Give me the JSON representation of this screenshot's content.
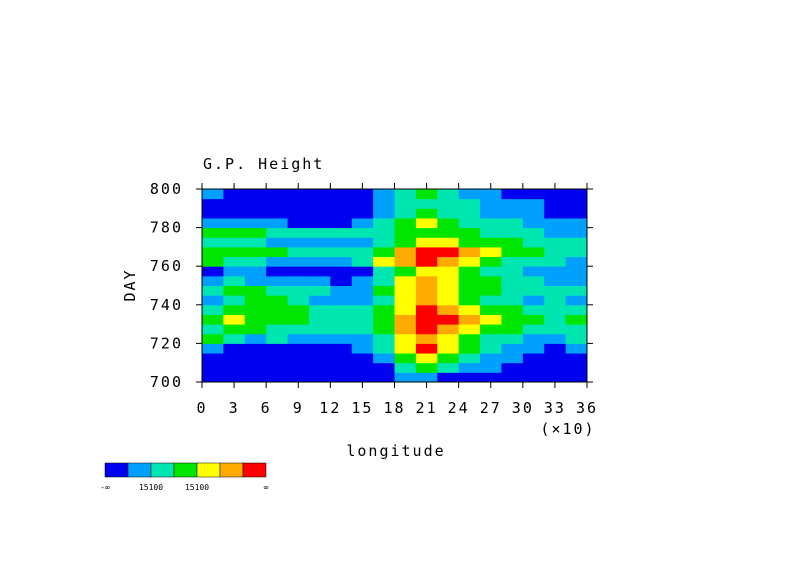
{
  "chart_data": {
    "type": "heatmap",
    "title": "G.P. Height",
    "xlabel": "longitude",
    "ylabel": "DAY",
    "xscale_note": "(×10)",
    "x": [
      0,
      2,
      4,
      6,
      8,
      10,
      12,
      14,
      16,
      18,
      20,
      22,
      24,
      26,
      28,
      30,
      32,
      34
    ],
    "y": [
      700,
      705,
      710,
      715,
      720,
      725,
      730,
      735,
      740,
      745,
      750,
      755,
      760,
      765,
      770,
      775,
      780,
      785,
      790,
      795
    ],
    "z": [
      [
        0,
        0,
        0,
        0,
        0,
        0,
        0,
        0,
        0,
        1,
        1,
        0,
        0,
        0,
        0,
        0,
        0,
        0
      ],
      [
        0,
        0,
        0,
        0,
        0,
        0,
        0,
        0,
        0,
        2,
        3,
        2,
        1,
        1,
        0,
        0,
        0,
        0
      ],
      [
        0,
        0,
        0,
        0,
        0,
        0,
        0,
        0,
        1,
        3,
        4,
        3,
        2,
        1,
        1,
        0,
        0,
        0
      ],
      [
        1,
        0,
        0,
        0,
        0,
        0,
        0,
        1,
        2,
        4,
        6,
        4,
        3,
        2,
        1,
        1,
        0,
        1
      ],
      [
        3,
        2,
        1,
        2,
        1,
        1,
        1,
        1,
        2,
        4,
        5,
        4,
        3,
        2,
        2,
        1,
        1,
        2
      ],
      [
        2,
        3,
        3,
        2,
        2,
        2,
        2,
        2,
        3,
        5,
        6,
        5,
        4,
        3,
        3,
        2,
        2,
        2
      ],
      [
        3,
        4,
        3,
        3,
        3,
        2,
        2,
        2,
        3,
        5,
        6,
        6,
        5,
        4,
        3,
        3,
        2,
        3
      ],
      [
        2,
        3,
        3,
        3,
        3,
        2,
        2,
        2,
        3,
        4,
        6,
        5,
        4,
        3,
        3,
        2,
        2,
        2
      ],
      [
        1,
        2,
        3,
        3,
        2,
        1,
        1,
        1,
        2,
        4,
        5,
        4,
        3,
        2,
        2,
        1,
        2,
        1
      ],
      [
        2,
        3,
        3,
        2,
        2,
        2,
        1,
        1,
        3,
        4,
        5,
        4,
        3,
        3,
        2,
        2,
        2,
        2
      ],
      [
        1,
        2,
        1,
        1,
        1,
        1,
        0,
        1,
        2,
        4,
        5,
        4,
        3,
        3,
        2,
        2,
        1,
        1
      ],
      [
        0,
        1,
        1,
        0,
        0,
        0,
        0,
        0,
        2,
        3,
        4,
        4,
        3,
        2,
        2,
        1,
        1,
        1
      ],
      [
        3,
        2,
        2,
        1,
        1,
        1,
        1,
        2,
        4,
        5,
        6,
        5,
        4,
        3,
        2,
        2,
        2,
        1
      ],
      [
        3,
        3,
        3,
        3,
        2,
        2,
        2,
        2,
        3,
        5,
        6,
        6,
        5,
        4,
        3,
        3,
        2,
        2
      ],
      [
        2,
        2,
        2,
        1,
        1,
        1,
        1,
        1,
        2,
        3,
        4,
        4,
        3,
        3,
        3,
        2,
        2,
        2
      ],
      [
        3,
        3,
        3,
        2,
        2,
        2,
        2,
        2,
        2,
        3,
        3,
        3,
        3,
        2,
        2,
        2,
        1,
        1
      ],
      [
        1,
        1,
        1,
        1,
        0,
        0,
        0,
        1,
        2,
        3,
        4,
        3,
        2,
        2,
        2,
        1,
        1,
        1
      ],
      [
        0,
        0,
        0,
        0,
        0,
        0,
        0,
        0,
        1,
        2,
        3,
        2,
        2,
        1,
        1,
        1,
        0,
        0
      ],
      [
        0,
        0,
        0,
        0,
        0,
        0,
        0,
        0,
        1,
        2,
        2,
        2,
        2,
        1,
        1,
        1,
        0,
        0
      ],
      [
        1,
        0,
        0,
        0,
        0,
        0,
        0,
        0,
        1,
        2,
        3,
        2,
        1,
        1,
        0,
        0,
        0,
        0
      ]
    ],
    "xlim": [
      0,
      36
    ],
    "xticks": [
      0,
      3,
      6,
      9,
      12,
      15,
      18,
      21,
      24,
      27,
      30,
      33,
      36
    ],
    "ylim": [
      700,
      800
    ],
    "yticks": [
      700,
      720,
      740,
      760,
      780,
      800
    ],
    "colorbar": {
      "colors": [
        "#0000f0",
        "#00a0ff",
        "#00e6b0",
        "#00e600",
        "#ffff00",
        "#ffaa00",
        "#ff0000"
      ],
      "labels": [
        "-∞",
        "15100",
        "15100",
        "∞"
      ]
    }
  }
}
